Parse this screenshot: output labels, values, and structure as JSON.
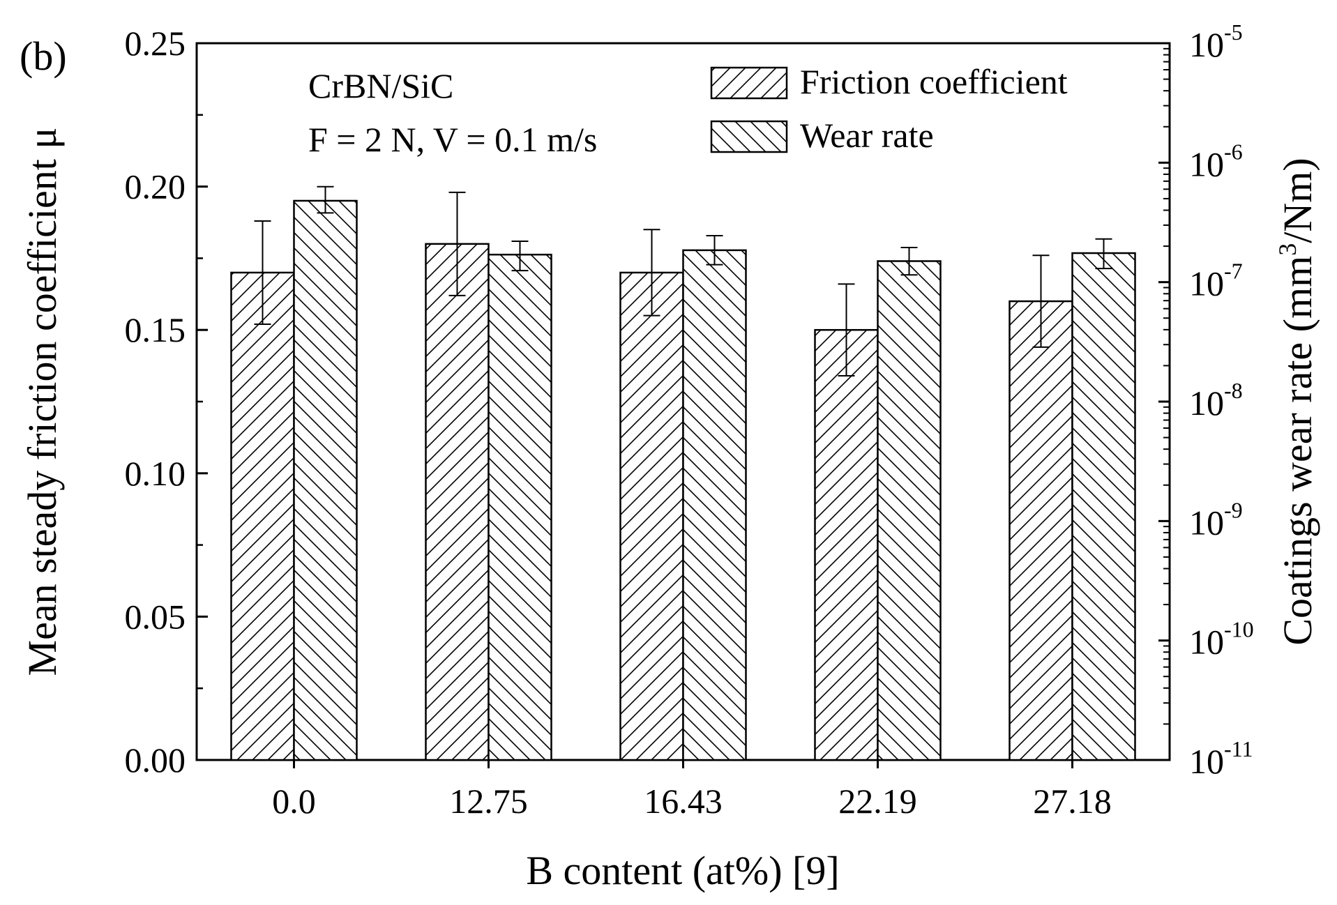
{
  "chart_data": {
    "type": "bar",
    "panel_label": "(b)",
    "annotation": {
      "line1": "CrBN/SiC",
      "line2": "F = 2 N, V = 0.1 m/s"
    },
    "xlabel": "B content (at%) [9]",
    "ylabel": "Mean steady friction coefficient μ",
    "ylabel_right": {
      "prefix": "Coatings wear rate (mm",
      "sup": "3",
      "suffix": "/Nm)"
    },
    "categories": [
      "0.0",
      "12.75",
      "16.43",
      "22.19",
      "27.18"
    ],
    "ylim": [
      0,
      0.25
    ],
    "yticks": [
      0.0,
      0.05,
      0.1,
      0.15,
      0.2,
      0.25
    ],
    "ytick_labels": [
      "0.00",
      "0.05",
      "0.10",
      "0.15",
      "0.20",
      "0.25"
    ],
    "y2_log_range": [
      1e-11,
      1e-05
    ],
    "y2_tick_labels": [
      {
        "base": "10",
        "exp": "-11"
      },
      {
        "base": "10",
        "exp": "-10"
      },
      {
        "base": "10",
        "exp": "-9"
      },
      {
        "base": "10",
        "exp": "-8"
      },
      {
        "base": "10",
        "exp": "-7"
      },
      {
        "base": "10",
        "exp": "-6"
      },
      {
        "base": "10",
        "exp": "-5"
      }
    ],
    "series": [
      {
        "name": "Friction coefficient",
        "axis": "left",
        "hatch": "forward",
        "values": [
          0.17,
          0.18,
          0.17,
          0.15,
          0.16
        ],
        "errors": [
          0.018,
          0.018,
          0.015,
          0.016,
          0.016
        ]
      },
      {
        "name": "Wear rate",
        "axis": "right",
        "hatch": "backward",
        "values": [
          4.8e-07,
          1.7e-07,
          1.85e-07,
          1.5e-07,
          1.75e-07
        ],
        "error_low": [
          3.8e-07,
          1.25e-07,
          1.4e-07,
          1.15e-07,
          1.3e-07
        ],
        "error_high": [
          6.3e-07,
          2.2e-07,
          2.45e-07,
          1.95e-07,
          2.3e-07
        ]
      }
    ],
    "legend_position": "top-right"
  }
}
